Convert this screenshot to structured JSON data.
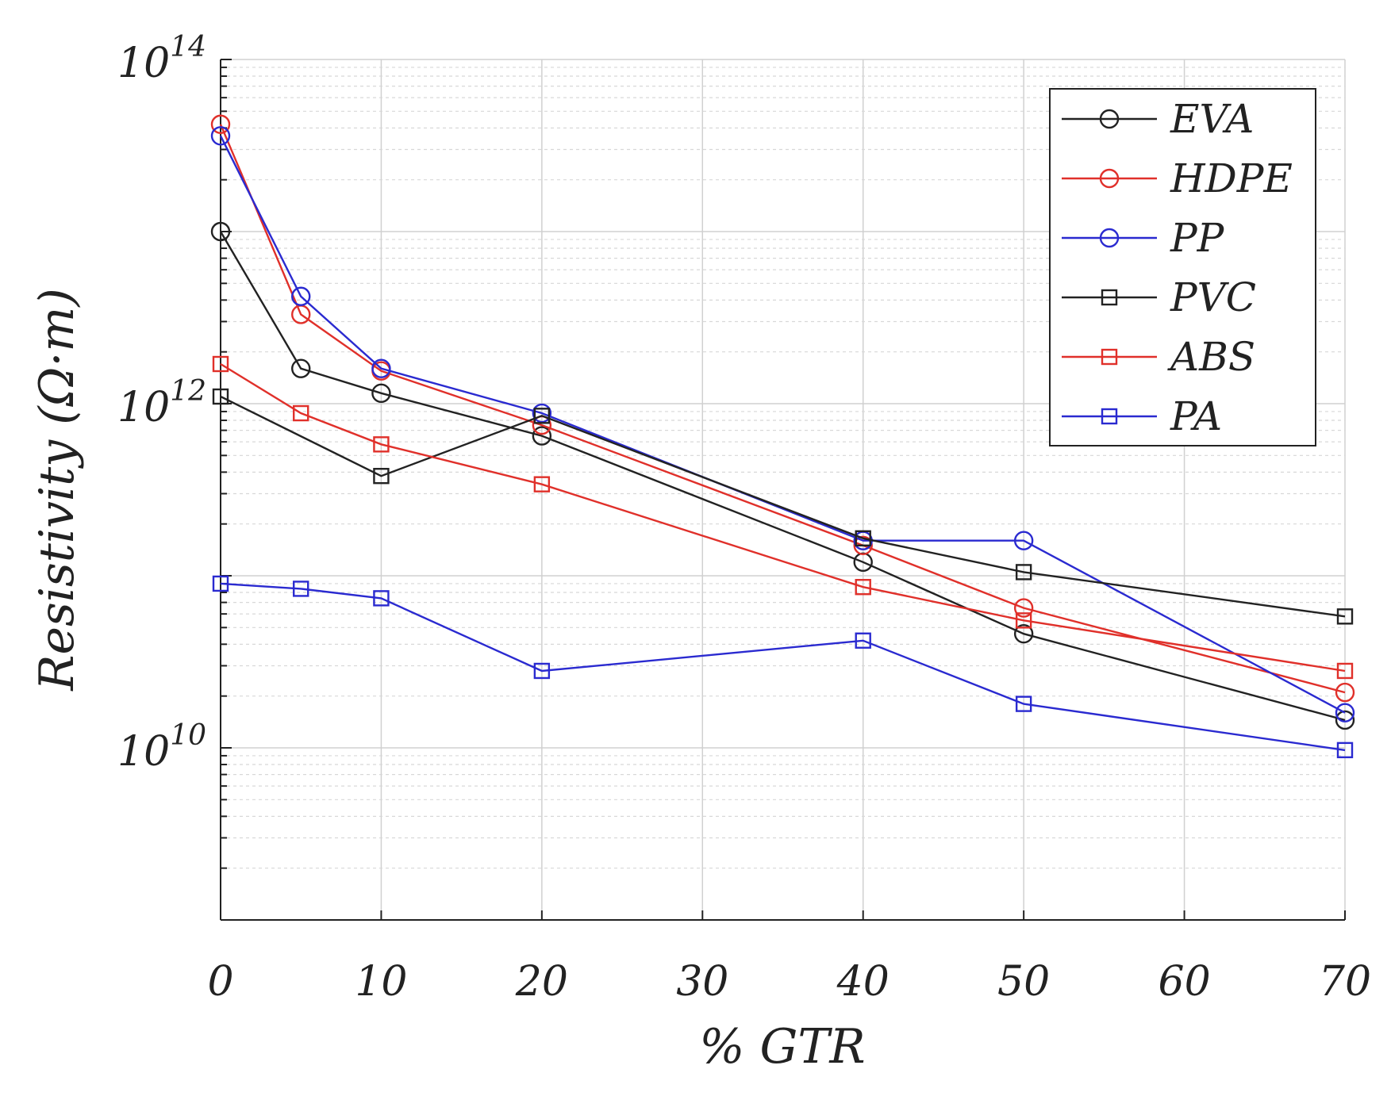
{
  "chart_data": {
    "type": "line",
    "title": "",
    "xlabel": "% GTR",
    "ylabel": "Resistivity (Ω·m)",
    "yscale": "log",
    "xlim": [
      0,
      70
    ],
    "ylim": [
      1000000000.0,
      100000000000000.0
    ],
    "xticks": [
      0,
      10,
      20,
      30,
      40,
      50,
      60,
      70
    ],
    "xtick_labels": [
      "0",
      "10",
      "20",
      "30",
      "40",
      "50",
      "60",
      "70"
    ],
    "yticks": [
      {
        "value": 10000000000.0,
        "base": "10",
        "exp": "10"
      },
      {
        "value": 1000000000000.0,
        "base": "10",
        "exp": "12"
      },
      {
        "value": 100000000000000.0,
        "base": "10",
        "exp": "14"
      }
    ],
    "grid": true,
    "legend_position": "top-right",
    "series": [
      {
        "name": "EVA",
        "color": "#222222",
        "marker": "circle",
        "x": [
          0,
          5,
          10,
          20,
          40,
          50,
          70
        ],
        "values": [
          10000000000000.0,
          1600000000000.0,
          1150000000000.0,
          650000000000.0,
          120000000000.0,
          46000000000.0,
          14500000000.0
        ]
      },
      {
        "name": "HDPE",
        "color": "#e0302a",
        "marker": "circle",
        "x": [
          0,
          5,
          10,
          20,
          40,
          50,
          70
        ],
        "values": [
          42000000000000.0,
          3300000000000.0,
          1550000000000.0,
          750000000000.0,
          150000000000.0,
          65000000000.0,
          21000000000.0
        ]
      },
      {
        "name": "PP",
        "color": "#2a2ad0",
        "marker": "circle",
        "x": [
          0,
          5,
          10,
          20,
          40,
          50,
          70
        ],
        "values": [
          36000000000000.0,
          4200000000000.0,
          1600000000000.0,
          880000000000.0,
          160000000000.0,
          160000000000.0,
          16000000000.0
        ]
      },
      {
        "name": "PVC",
        "color": "#222222",
        "marker": "square",
        "x": [
          0,
          10,
          20,
          40,
          50,
          70
        ],
        "values": [
          1100000000000.0,
          380000000000.0,
          850000000000.0,
          165000000000.0,
          105000000000.0,
          58000000000.0
        ]
      },
      {
        "name": "ABS",
        "color": "#e0302a",
        "marker": "square",
        "x": [
          0,
          5,
          10,
          20,
          40,
          50,
          70
        ],
        "values": [
          1700000000000.0,
          880000000000.0,
          580000000000.0,
          340000000000.0,
          86000000000.0,
          55000000000.0,
          28000000000.0
        ]
      },
      {
        "name": "PA",
        "color": "#2a2ad0",
        "marker": "square",
        "x": [
          0,
          5,
          10,
          20,
          40,
          50,
          70
        ],
        "values": [
          90000000000.0,
          84000000000.0,
          74000000000.0,
          28000000000.0,
          42000000000.0,
          18000000000.0,
          9700000000.0
        ]
      }
    ]
  }
}
